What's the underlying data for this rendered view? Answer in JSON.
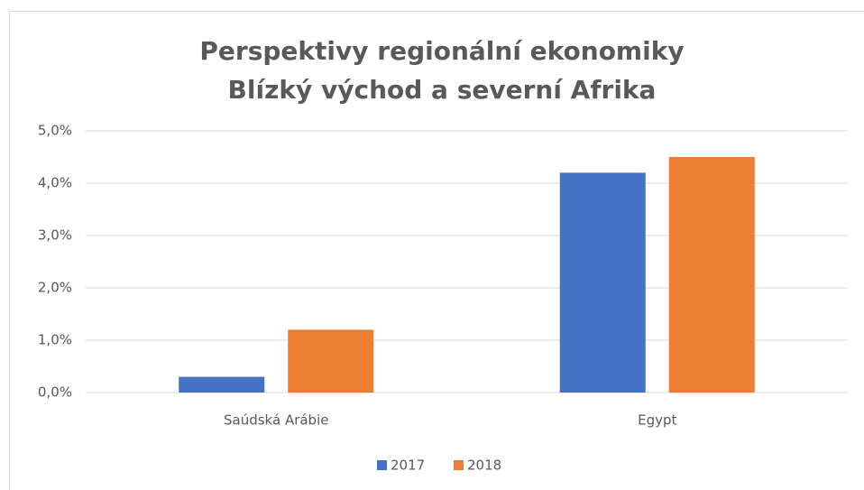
{
  "chart_data": {
    "type": "bar",
    "title": [
      "Perspektivy regionální ekonomiky",
      "Blízký východ a severní Afrika"
    ],
    "categories": [
      "Saúdská Arábie",
      "Egypt"
    ],
    "series": [
      {
        "name": "2017",
        "color": "#4472c4",
        "values": [
          0.3,
          4.2
        ]
      },
      {
        "name": "2018",
        "color": "#ed7d31",
        "values": [
          1.2,
          4.5
        ]
      }
    ],
    "ylim": [
      0,
      5
    ],
    "yticks": [
      {
        "value": 0,
        "label": "0,0%"
      },
      {
        "value": 1,
        "label": "1,0%"
      },
      {
        "value": 2,
        "label": "2,0%"
      },
      {
        "value": 3,
        "label": "3,0%"
      },
      {
        "value": 4,
        "label": "4,0%"
      },
      {
        "value": 5,
        "label": "5,0%"
      }
    ],
    "grid": true,
    "legend": "bottom"
  }
}
